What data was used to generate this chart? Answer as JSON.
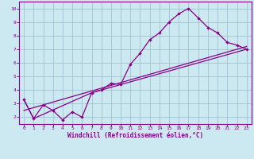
{
  "xlabel": "Windchill (Refroidissement éolien,°C)",
  "xlim": [
    -0.5,
    23.5
  ],
  "ylim": [
    1.5,
    10.5
  ],
  "yticks": [
    2,
    3,
    4,
    5,
    6,
    7,
    8,
    9,
    10
  ],
  "xticks": [
    0,
    1,
    2,
    3,
    4,
    5,
    6,
    7,
    8,
    9,
    10,
    11,
    12,
    13,
    14,
    15,
    16,
    17,
    18,
    19,
    20,
    21,
    22,
    23
  ],
  "bg_color": "#cce8f0",
  "line_color": "#880088",
  "grid_color": "#99bbcc",
  "line1_x": [
    0,
    1,
    2,
    3,
    4,
    5,
    6,
    7,
    8,
    9,
    10,
    11,
    12,
    13,
    14,
    15,
    16,
    17,
    18,
    19,
    20,
    21,
    22,
    23
  ],
  "line1_y": [
    3.3,
    1.9,
    2.9,
    2.5,
    1.8,
    2.4,
    2.0,
    3.8,
    4.0,
    4.5,
    4.4,
    5.9,
    6.7,
    7.7,
    8.2,
    9.0,
    9.6,
    10.0,
    9.3,
    8.6,
    8.2,
    7.5,
    7.3,
    7.0
  ],
  "line2_x": [
    0,
    1,
    7,
    23
  ],
  "line2_y": [
    3.3,
    1.9,
    3.8,
    7.0
  ],
  "line3_x": [
    0,
    23
  ],
  "line3_y": [
    2.5,
    7.2
  ]
}
